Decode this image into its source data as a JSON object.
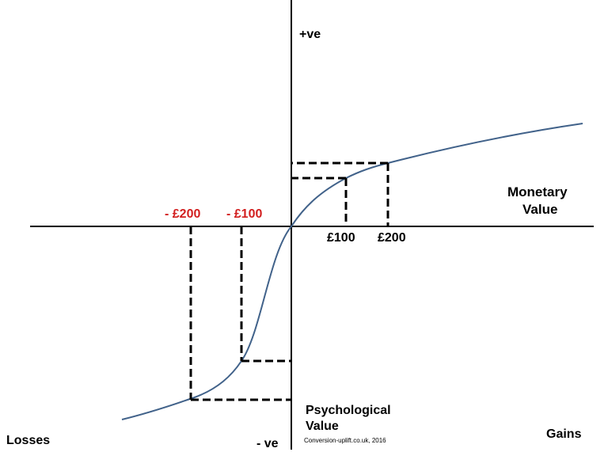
{
  "labels": {
    "y_positive": "+ve",
    "y_negative": "- ve",
    "x_axis_line1": "Monetary",
    "x_axis_line2": "Value",
    "y_axis_line1": "Psychological",
    "y_axis_line2": "Value",
    "losses": "Losses",
    "gains": "Gains",
    "credit": "Conversion-uplift.co.uk, 2016"
  },
  "ticks": {
    "gain_100": "£100",
    "gain_200": "£200",
    "loss_100": "- £100",
    "loss_200": "- £200"
  },
  "colors": {
    "curve": "#41628a",
    "loss_labels": "#d21f1f",
    "axes": "#000000"
  }
}
